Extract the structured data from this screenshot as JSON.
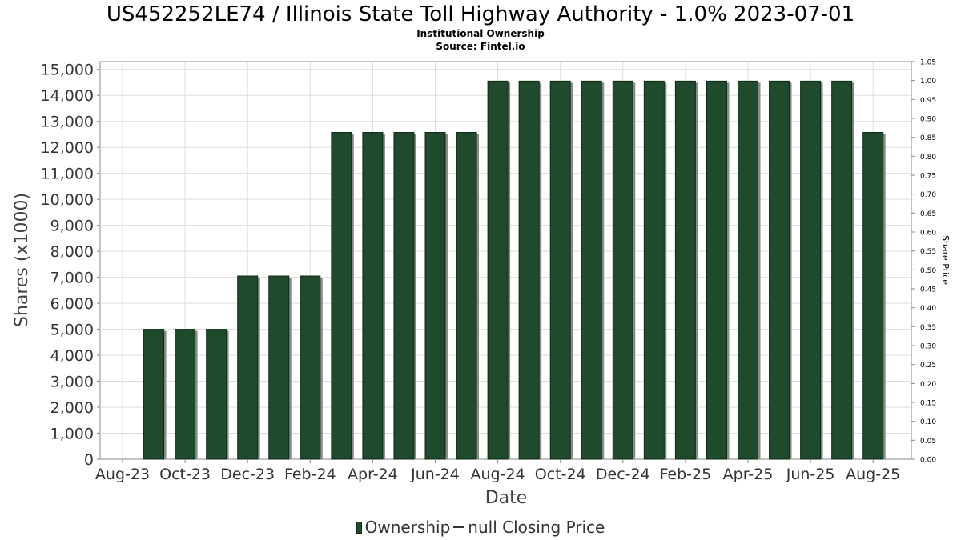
{
  "header": {
    "title": "US452252LE74 / Illinois State Toll Highway Authority - 1.0% 2023-07-01",
    "subtitle": "Institutional Ownership",
    "source": "Source: Fintel.io"
  },
  "legend": {
    "ownership": "Ownership",
    "price": "null Closing Price"
  },
  "colors": {
    "bar": "#1f4a2b",
    "bar_shadow": "#8a8a8a",
    "grid": "#dddddd",
    "axis": "#888888"
  },
  "chart_data": {
    "type": "bar",
    "xlabel": "Date",
    "ylabel": "Shares (x1000)",
    "y2label": "Share Price",
    "ylim": [
      0,
      15300
    ],
    "y2lim": [
      0,
      1.05
    ],
    "yticks": [
      "0",
      "1,000",
      "2,000",
      "3,000",
      "4,000",
      "5,000",
      "6,000",
      "7,000",
      "8,000",
      "9,000",
      "10,000",
      "11,000",
      "12,000",
      "13,000",
      "14,000",
      "15,000"
    ],
    "y2ticks": [
      "0.00",
      "0.05",
      "0.10",
      "0.15",
      "0.20",
      "0.25",
      "0.30",
      "0.35",
      "0.40",
      "0.45",
      "0.50",
      "0.55",
      "0.60",
      "0.65",
      "0.70",
      "0.75",
      "0.80",
      "0.85",
      "0.90",
      "0.95",
      "1.00",
      "1.05"
    ],
    "xtick_labels": [
      "Aug-23",
      "Oct-23",
      "Dec-23",
      "Feb-24",
      "Apr-24",
      "Jun-24",
      "Aug-24",
      "Oct-24",
      "Dec-24",
      "Feb-25",
      "Apr-25",
      "Jun-25",
      "Aug-25"
    ],
    "categories": [
      "Sep-23",
      "Oct-23",
      "Nov-23",
      "Dec-23",
      "Jan-24",
      "Feb-24",
      "Mar-24",
      "Apr-24",
      "May-24",
      "Jun-24",
      "Jul-24",
      "Aug-24",
      "Sep-24",
      "Oct-24",
      "Nov-24",
      "Dec-24",
      "Jan-25",
      "Feb-25",
      "Mar-25",
      "Apr-25",
      "May-25",
      "Jun-25",
      "Jul-25",
      "Aug-25"
    ],
    "values": [
      5000,
      5000,
      5000,
      7050,
      7050,
      7050,
      12575,
      12575,
      12575,
      12575,
      12575,
      14550,
      14550,
      14550,
      14550,
      14550,
      14550,
      14550,
      14550,
      14550,
      14550,
      14550,
      14550,
      12575
    ],
    "series": [
      {
        "name": "Ownership",
        "values": [
          5000,
          5000,
          5000,
          7050,
          7050,
          7050,
          12575,
          12575,
          12575,
          12575,
          12575,
          14550,
          14550,
          14550,
          14550,
          14550,
          14550,
          14550,
          14550,
          14550,
          14550,
          14550,
          14550,
          12575
        ]
      }
    ],
    "grid": true,
    "legend_position": "bottom"
  }
}
